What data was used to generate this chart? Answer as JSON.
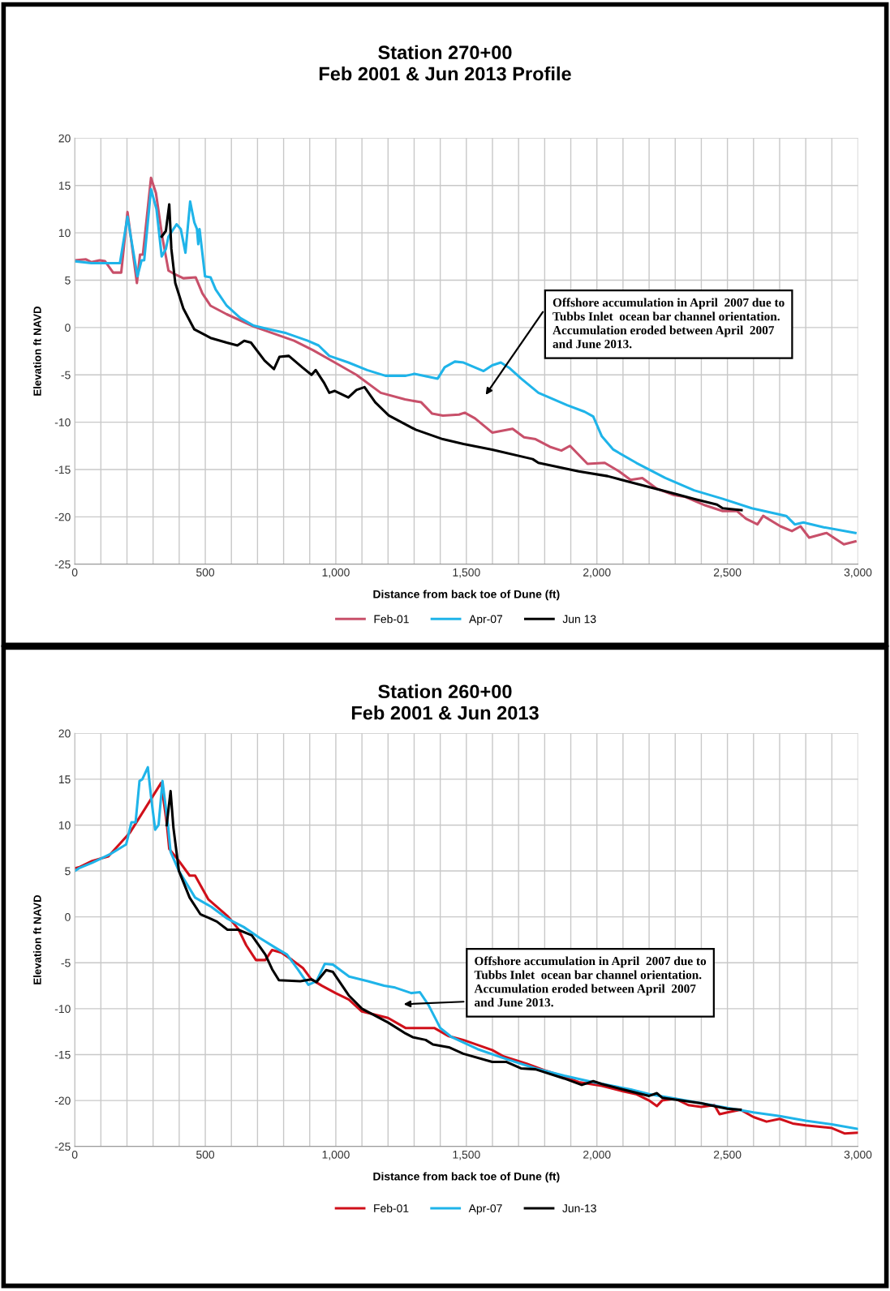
{
  "chart_data": [
    {
      "type": "line",
      "title": "Station 270+00\nFeb 2001 & Jun 2013 Profile",
      "xlabel": "Distance from back toe of Dune (ft)",
      "ylabel": "Elevation ft NAVD",
      "xlim": [
        0,
        3000
      ],
      "ylim": [
        -25,
        20
      ],
      "xticks": [
        0,
        {
          "value": 100,
          "label": null
        },
        {
          "value": 200,
          "label": null
        },
        {
          "value": 300,
          "label": null
        },
        {
          "value": 400,
          "label": null
        },
        {
          "value": 500,
          "label": "500"
        },
        {
          "value": 600,
          "label": null
        },
        {
          "value": 700,
          "label": null
        },
        {
          "value": 800,
          "label": null
        },
        {
          "value": 900,
          "label": null
        },
        {
          "value": 1000,
          "label": "1,000"
        },
        {
          "value": 1100,
          "label": null
        },
        {
          "value": 1200,
          "label": null
        },
        {
          "value": 1300,
          "label": null
        },
        {
          "value": 1400,
          "label": null
        },
        {
          "value": 1500,
          "label": "1,500"
        },
        {
          "value": 1600,
          "label": null
        },
        {
          "value": 1700,
          "label": null
        },
        {
          "value": 1800,
          "label": null
        },
        {
          "value": 1900,
          "label": null
        },
        {
          "value": 2000,
          "label": "2,000"
        },
        {
          "value": 2100,
          "label": null
        },
        {
          "value": 2200,
          "label": null
        },
        {
          "value": 2300,
          "label": null
        },
        {
          "value": 2400,
          "label": null
        },
        {
          "value": 2500,
          "label": "2,500"
        },
        {
          "value": 2600,
          "label": null
        },
        {
          "value": 2700,
          "label": null
        },
        {
          "value": 2800,
          "label": null
        },
        {
          "value": 2900,
          "label": null
        },
        {
          "value": 3000,
          "label": "3,000"
        }
      ],
      "yticks": [
        -25,
        -20,
        -15,
        -10,
        -5,
        0,
        5,
        10,
        15,
        20
      ],
      "grid": true,
      "legend": "bottom",
      "marker": "none",
      "line_style": "solid",
      "annotations": [
        "Offshore accumulation in April  2007 due to\nTubbs Inlet  ocean bar channel orientation.\nAccumulation eroded between April  2007\nand June 2013."
      ],
      "series": [
        {
          "name": "Feb-01",
          "color": "#c8506a",
          "x": [
            0,
            43,
            64,
            95,
            116,
            147,
            178,
            202,
            238,
            250,
            261,
            292,
            311,
            335,
            359,
            385,
            416,
            463,
            489,
            520,
            582,
            685,
            778,
            840,
            913,
            996,
            1079,
            1172,
            1265,
            1327,
            1369,
            1410,
            1472,
            1494,
            1533,
            1599,
            1677,
            1721,
            1765,
            1820,
            1864,
            1897,
            1964,
            2030,
            2085,
            2129,
            2174,
            2228,
            2295,
            2339,
            2416,
            2482,
            2537,
            2571,
            2615,
            2637,
            2703,
            2747,
            2780,
            2813,
            2880,
            2946,
            2990
          ],
          "values": [
            7.1,
            7.2,
            6.9,
            7.1,
            7.0,
            5.8,
            5.8,
            12.2,
            4.7,
            7.7,
            7.7,
            15.8,
            14.2,
            9.6,
            6.0,
            5.6,
            5.2,
            5.3,
            3.6,
            2.3,
            1.4,
            0.1,
            -0.8,
            -1.4,
            -2.4,
            -3.7,
            -5.0,
            -6.9,
            -7.6,
            -7.9,
            -9.1,
            -9.3,
            -9.2,
            -9.0,
            -9.6,
            -11.1,
            -10.7,
            -11.6,
            -11.8,
            -12.6,
            -13.0,
            -12.5,
            -14.4,
            -14.3,
            -15.2,
            -16.1,
            -15.9,
            -17.0,
            -17.7,
            -17.9,
            -18.8,
            -19.4,
            -19.4,
            -20.2,
            -20.8,
            -19.9,
            -21.0,
            -21.5,
            -21.0,
            -22.2,
            -21.7,
            -22.9,
            -22.6
          ]
        },
        {
          "name": "Apr-07",
          "color": "#1fb4e9",
          "x": [
            0,
            64,
            173,
            202,
            240,
            256,
            266,
            292,
            313,
            333,
            349,
            359,
            390,
            406,
            424,
            442,
            458,
            468,
            473,
            478,
            499,
            520,
            540,
            582,
            634,
            685,
            747,
            810,
            892,
            934,
            975,
            1048,
            1120,
            1190,
            1268,
            1301,
            1390,
            1417,
            1456,
            1489,
            1566,
            1599,
            1632,
            1666,
            1710,
            1776,
            1886,
            1953,
            1986,
            2019,
            2063,
            2151,
            2262,
            2372,
            2482,
            2593,
            2725,
            2758,
            2791,
            2869,
            2990
          ],
          "values": [
            7.0,
            6.8,
            6.8,
            11.7,
            5.4,
            7.1,
            7.1,
            14.6,
            12.5,
            7.5,
            8.3,
            9.6,
            10.9,
            10.4,
            7.9,
            13.3,
            11.1,
            10.4,
            8.8,
            10.4,
            5.4,
            5.3,
            4.0,
            2.3,
            1.0,
            0.2,
            -0.2,
            -0.6,
            -1.4,
            -1.9,
            -3.0,
            -3.7,
            -4.5,
            -5.1,
            -5.1,
            -4.9,
            -5.4,
            -4.2,
            -3.6,
            -3.7,
            -4.6,
            -4.0,
            -3.7,
            -4.3,
            -5.4,
            -6.9,
            -8.2,
            -8.9,
            -9.4,
            -11.5,
            -12.9,
            -14.3,
            -15.9,
            -17.2,
            -18.1,
            -19.1,
            -19.9,
            -20.8,
            -20.6,
            -21.1,
            -21.7
          ]
        },
        {
          "name": "Jun 13",
          "color": "#000000",
          "x": [
            333,
            349,
            362,
            370,
            385,
            416,
            458,
            520,
            582,
            623,
            649,
            675,
            727,
            763,
            784,
            820,
            871,
            907,
            923,
            954,
            975,
            996,
            1048,
            1079,
            1110,
            1151,
            1203,
            1306,
            1410,
            1489,
            1599,
            1754,
            1776,
            1930,
            2041,
            2151,
            2262,
            2372,
            2460,
            2482,
            2554
          ],
          "values": [
            9.6,
            10.2,
            13.0,
            8.3,
            4.7,
            2.0,
            -0.2,
            -1.1,
            -1.6,
            -1.9,
            -1.4,
            -1.6,
            -3.5,
            -4.4,
            -3.1,
            -3.0,
            -4.2,
            -5.0,
            -4.5,
            -5.8,
            -6.9,
            -6.7,
            -7.4,
            -6.6,
            -6.3,
            -7.9,
            -9.3,
            -10.8,
            -11.8,
            -12.3,
            -12.9,
            -13.9,
            -14.3,
            -15.2,
            -15.7,
            -16.5,
            -17.3,
            -18.1,
            -18.7,
            -19.1,
            -19.3
          ]
        }
      ]
    },
    {
      "type": "line",
      "title": "Station 260+00\nFeb 2001 & Jun 2013",
      "xlabel": "Distance from back toe of Dune (ft)",
      "ylabel": "Elevation ft NAVD",
      "xlim": [
        0,
        3000
      ],
      "ylim": [
        -25,
        20
      ],
      "xticks": [
        0,
        {
          "value": 100,
          "label": null
        },
        {
          "value": 200,
          "label": null
        },
        {
          "value": 300,
          "label": null
        },
        {
          "value": 400,
          "label": null
        },
        {
          "value": 500,
          "label": "500"
        },
        {
          "value": 600,
          "label": null
        },
        {
          "value": 700,
          "label": null
        },
        {
          "value": 800,
          "label": null
        },
        {
          "value": 900,
          "label": null
        },
        {
          "value": 1000,
          "label": "1,000"
        },
        {
          "value": 1100,
          "label": null
        },
        {
          "value": 1200,
          "label": null
        },
        {
          "value": 1300,
          "label": null
        },
        {
          "value": 1400,
          "label": null
        },
        {
          "value": 1500,
          "label": "1,500"
        },
        {
          "value": 1600,
          "label": null
        },
        {
          "value": 1700,
          "label": null
        },
        {
          "value": 1800,
          "label": null
        },
        {
          "value": 1900,
          "label": null
        },
        {
          "value": 2000,
          "label": "2,000"
        },
        {
          "value": 2100,
          "label": null
        },
        {
          "value": 2200,
          "label": null
        },
        {
          "value": 2300,
          "label": null
        },
        {
          "value": 2400,
          "label": null
        },
        {
          "value": 2500,
          "label": "2,500"
        },
        {
          "value": 2600,
          "label": null
        },
        {
          "value": 2700,
          "label": null
        },
        {
          "value": 2800,
          "label": null
        },
        {
          "value": 2900,
          "label": null
        },
        {
          "value": 3000,
          "label": "3,000"
        }
      ],
      "yticks": [
        -25,
        -20,
        -15,
        -10,
        -5,
        0,
        5,
        10,
        15,
        20
      ],
      "grid": true,
      "legend": "bottom",
      "marker": "none",
      "line_style": "solid",
      "annotations": [
        "Offshore accumulation in April  2007 due to\nTubbs Inlet  ocean bar channel orientation.\nAccumulation eroded between April  2007\nand June 2013."
      ],
      "series": [
        {
          "name": "Feb-01",
          "color": "#d0101a",
          "x": [
            0,
            16,
            67,
            129,
            212,
            331,
            352,
            362,
            399,
            440,
            461,
            512,
            585,
            626,
            657,
            694,
            730,
            756,
            792,
            833,
            875,
            906,
            947,
            999,
            1050,
            1100,
            1200,
            1267,
            1377,
            1433,
            1488,
            1599,
            1643,
            1731,
            1798,
            1875,
            1931,
            2019,
            2100,
            2150,
            2200,
            2230,
            2250,
            2300,
            2350,
            2400,
            2450,
            2470,
            2500,
            2550,
            2600,
            2650,
            2700,
            2750,
            2800,
            2900,
            2950,
            3000
          ],
          "values": [
            5.3,
            5.4,
            6.1,
            6.6,
            9.2,
            14.6,
            10.3,
            7.4,
            6.1,
            4.5,
            4.5,
            1.9,
            0.1,
            -1.3,
            -3.1,
            -4.7,
            -4.7,
            -3.6,
            -3.9,
            -4.7,
            -5.6,
            -6.8,
            -7.5,
            -8.3,
            -9.0,
            -10.3,
            -11.0,
            -12.1,
            -12.1,
            -13.0,
            -13.4,
            -14.5,
            -15.2,
            -16.0,
            -16.7,
            -17.4,
            -18.0,
            -18.4,
            -19.0,
            -19.3,
            -20.0,
            -20.6,
            -20.0,
            -19.8,
            -20.5,
            -20.7,
            -20.5,
            -21.5,
            -21.3,
            -21.0,
            -21.8,
            -22.3,
            -22.0,
            -22.5,
            -22.7,
            -23.0,
            -23.6,
            -23.5
          ]
        },
        {
          "name": "Apr-07",
          "color": "#1fb4e9",
          "x": [
            0,
            16,
            67,
            140,
            197,
            217,
            233,
            248,
            259,
            280,
            293,
            308,
            321,
            336,
            357,
            367,
            399,
            461,
            523,
            585,
            647,
            709,
            771,
            813,
            854,
            895,
            926,
            958,
            989,
            1051,
            1123,
            1185,
            1227,
            1289,
            1322,
            1355,
            1400,
            1444,
            1543,
            1654,
            1765,
            1875,
            1986,
            2130,
            2200,
            2300,
            2400,
            2500,
            2600,
            2700,
            2800,
            2900,
            3000
          ],
          "values": [
            5.0,
            5.3,
            5.9,
            6.9,
            7.9,
            10.3,
            10.3,
            14.8,
            15.0,
            16.3,
            12.9,
            9.5,
            10.0,
            14.8,
            10.0,
            7.1,
            5.0,
            2.1,
            1.1,
            -0.2,
            -1.1,
            -2.3,
            -3.4,
            -4.1,
            -5.7,
            -7.4,
            -7.0,
            -5.1,
            -5.2,
            -6.5,
            -7.0,
            -7.5,
            -7.7,
            -8.3,
            -8.2,
            -9.6,
            -12.1,
            -13.1,
            -14.4,
            -15.5,
            -16.5,
            -17.3,
            -18.0,
            -18.8,
            -19.3,
            -19.8,
            -20.3,
            -20.8,
            -21.3,
            -21.7,
            -22.2,
            -22.6,
            -23.1
          ]
        },
        {
          "name": "Jun-13",
          "color": "#000000",
          "x": [
            352,
            367,
            378,
            399,
            440,
            481,
            544,
            585,
            626,
            678,
            730,
            756,
            782,
            864,
            906,
            926,
            963,
            989,
            1020,
            1051,
            1100,
            1200,
            1267,
            1294,
            1344,
            1372,
            1433,
            1488,
            1599,
            1654,
            1709,
            1765,
            1875,
            1942,
            1986,
            2019,
            2100,
            2200,
            2230,
            2250,
            2300,
            2400,
            2450,
            2500,
            2550
          ],
          "values": [
            10.0,
            13.7,
            9.7,
            5.0,
            2.1,
            0.3,
            -0.5,
            -1.4,
            -1.4,
            -2.0,
            -4.1,
            -5.7,
            -6.9,
            -7.0,
            -6.8,
            -7.1,
            -5.8,
            -6.0,
            -7.3,
            -8.6,
            -10.0,
            -11.5,
            -12.7,
            -13.1,
            -13.4,
            -13.9,
            -14.2,
            -14.9,
            -15.8,
            -15.8,
            -16.5,
            -16.6,
            -17.6,
            -18.3,
            -17.9,
            -18.2,
            -18.8,
            -19.5,
            -19.2,
            -19.7,
            -19.9,
            -20.3,
            -20.6,
            -20.9,
            -21.0
          ]
        }
      ]
    }
  ]
}
